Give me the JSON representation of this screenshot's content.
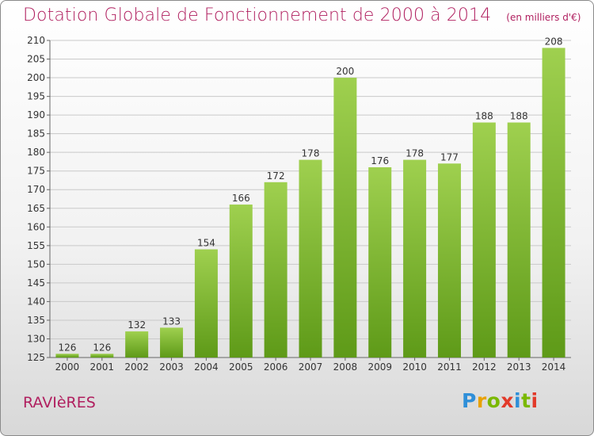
{
  "header": {
    "title": "Dotation Globale de Fonctionnement de 2000 à 2014",
    "unit": "(en milliers d'€)"
  },
  "footer": {
    "commune": "RAVIèRES",
    "logo_text": "Proxiti"
  },
  "colors": {
    "title": "#b01f5f",
    "bar_light": "#9fd04f",
    "bar_dark": "#5e9a18",
    "grid": "#c9c9c9",
    "axis_text": "#333333"
  },
  "chart_data": {
    "type": "bar",
    "title": "Dotation Globale de Fonctionnement de 2000 à 2014",
    "subtitle": "(en milliers d'€)",
    "xlabel": "",
    "ylabel": "",
    "categories": [
      "2000",
      "2001",
      "2002",
      "2003",
      "2004",
      "2005",
      "2006",
      "2007",
      "2008",
      "2009",
      "2010",
      "2011",
      "2012",
      "2013",
      "2014"
    ],
    "values": [
      126,
      126,
      132,
      133,
      154,
      166,
      172,
      178,
      200,
      176,
      178,
      177,
      188,
      188,
      208
    ],
    "ylim": [
      125,
      210
    ],
    "yticks": [
      125,
      130,
      135,
      140,
      145,
      150,
      155,
      160,
      165,
      170,
      175,
      180,
      185,
      190,
      195,
      200,
      205,
      210
    ],
    "grid": true,
    "legend": "none"
  }
}
